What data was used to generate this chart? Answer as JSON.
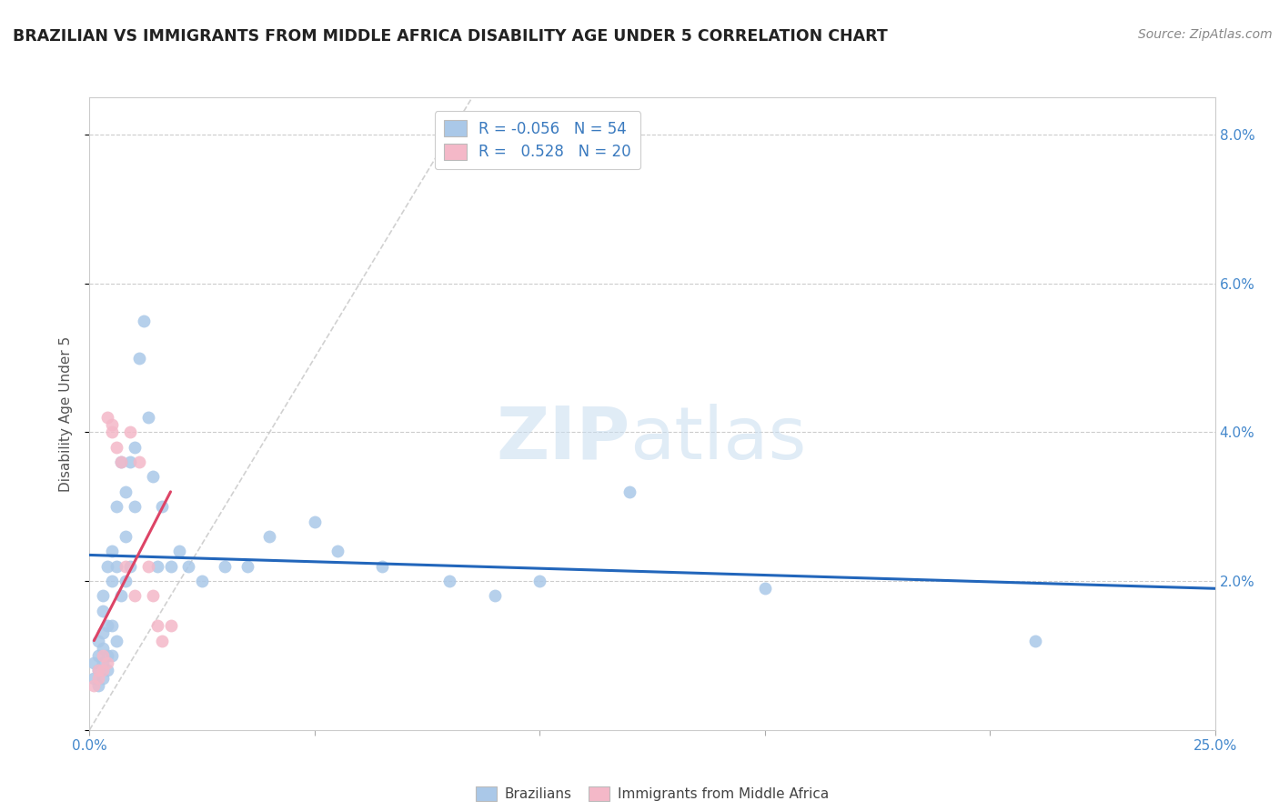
{
  "title": "BRAZILIAN VS IMMIGRANTS FROM MIDDLE AFRICA DISABILITY AGE UNDER 5 CORRELATION CHART",
  "source": "Source: ZipAtlas.com",
  "ylabel": "Disability Age Under 5",
  "xlim": [
    0.0,
    0.25
  ],
  "ylim": [
    0.0,
    0.085
  ],
  "legend_R1": "-0.056",
  "legend_N1": "54",
  "legend_R2": "0.528",
  "legend_N2": "20",
  "blue_color": "#aac8e8",
  "pink_color": "#f4b8c8",
  "trend_blue_color": "#2266bb",
  "trend_pink_color": "#dd4466",
  "diag_color": "#cccccc",
  "blue_scatter": [
    [
      0.001,
      0.007
    ],
    [
      0.001,
      0.009
    ],
    [
      0.002,
      0.006
    ],
    [
      0.002,
      0.008
    ],
    [
      0.002,
      0.01
    ],
    [
      0.002,
      0.012
    ],
    [
      0.003,
      0.007
    ],
    [
      0.003,
      0.009
    ],
    [
      0.003,
      0.011
    ],
    [
      0.003,
      0.013
    ],
    [
      0.003,
      0.016
    ],
    [
      0.003,
      0.018
    ],
    [
      0.004,
      0.008
    ],
    [
      0.004,
      0.01
    ],
    [
      0.004,
      0.014
    ],
    [
      0.004,
      0.022
    ],
    [
      0.005,
      0.01
    ],
    [
      0.005,
      0.014
    ],
    [
      0.005,
      0.02
    ],
    [
      0.005,
      0.024
    ],
    [
      0.006,
      0.012
    ],
    [
      0.006,
      0.022
    ],
    [
      0.006,
      0.03
    ],
    [
      0.007,
      0.018
    ],
    [
      0.007,
      0.036
    ],
    [
      0.008,
      0.02
    ],
    [
      0.008,
      0.026
    ],
    [
      0.008,
      0.032
    ],
    [
      0.009,
      0.022
    ],
    [
      0.009,
      0.036
    ],
    [
      0.01,
      0.03
    ],
    [
      0.01,
      0.038
    ],
    [
      0.011,
      0.05
    ],
    [
      0.012,
      0.055
    ],
    [
      0.013,
      0.042
    ],
    [
      0.014,
      0.034
    ],
    [
      0.015,
      0.022
    ],
    [
      0.016,
      0.03
    ],
    [
      0.018,
      0.022
    ],
    [
      0.02,
      0.024
    ],
    [
      0.022,
      0.022
    ],
    [
      0.025,
      0.02
    ],
    [
      0.03,
      0.022
    ],
    [
      0.035,
      0.022
    ],
    [
      0.04,
      0.026
    ],
    [
      0.05,
      0.028
    ],
    [
      0.055,
      0.024
    ],
    [
      0.065,
      0.022
    ],
    [
      0.08,
      0.02
    ],
    [
      0.09,
      0.018
    ],
    [
      0.1,
      0.02
    ],
    [
      0.12,
      0.032
    ],
    [
      0.15,
      0.019
    ],
    [
      0.21,
      0.012
    ]
  ],
  "pink_scatter": [
    [
      0.001,
      0.006
    ],
    [
      0.002,
      0.007
    ],
    [
      0.002,
      0.008
    ],
    [
      0.003,
      0.008
    ],
    [
      0.003,
      0.01
    ],
    [
      0.004,
      0.009
    ],
    [
      0.004,
      0.042
    ],
    [
      0.005,
      0.041
    ],
    [
      0.005,
      0.04
    ],
    [
      0.006,
      0.038
    ],
    [
      0.007,
      0.036
    ],
    [
      0.008,
      0.022
    ],
    [
      0.009,
      0.04
    ],
    [
      0.01,
      0.018
    ],
    [
      0.011,
      0.036
    ],
    [
      0.013,
      0.022
    ],
    [
      0.014,
      0.018
    ],
    [
      0.015,
      0.014
    ],
    [
      0.016,
      0.012
    ],
    [
      0.018,
      0.014
    ]
  ],
  "blue_trend_x": [
    0.0,
    0.25
  ],
  "blue_trend_y": [
    0.0235,
    0.019
  ],
  "pink_trend_x": [
    0.001,
    0.018
  ],
  "pink_trend_y": [
    0.012,
    0.032
  ]
}
